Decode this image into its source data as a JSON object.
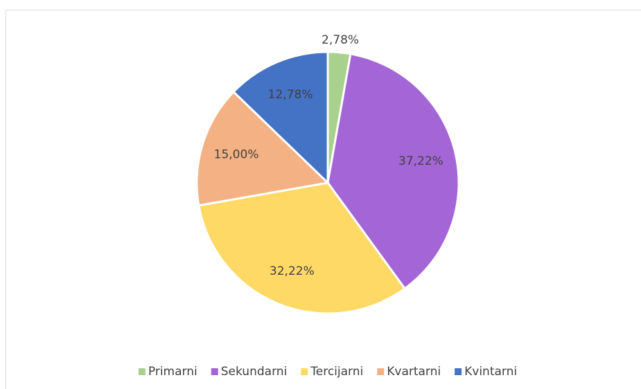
{
  "chart_data": {
    "type": "pie",
    "categories": [
      "Primarni",
      "Sekundarni",
      "Tercijarni",
      "Kvartarni",
      "Kvintarni"
    ],
    "values": [
      2.78,
      37.22,
      32.22,
      15.0,
      12.78
    ],
    "value_labels": [
      "2,78%",
      "37,22%",
      "32,22%",
      "15,00%",
      "12,78%"
    ],
    "colors": [
      "#a9d18e",
      "#a466d6",
      "#ffd966",
      "#f4b183",
      "#4472c4"
    ],
    "legend": "bottom"
  }
}
